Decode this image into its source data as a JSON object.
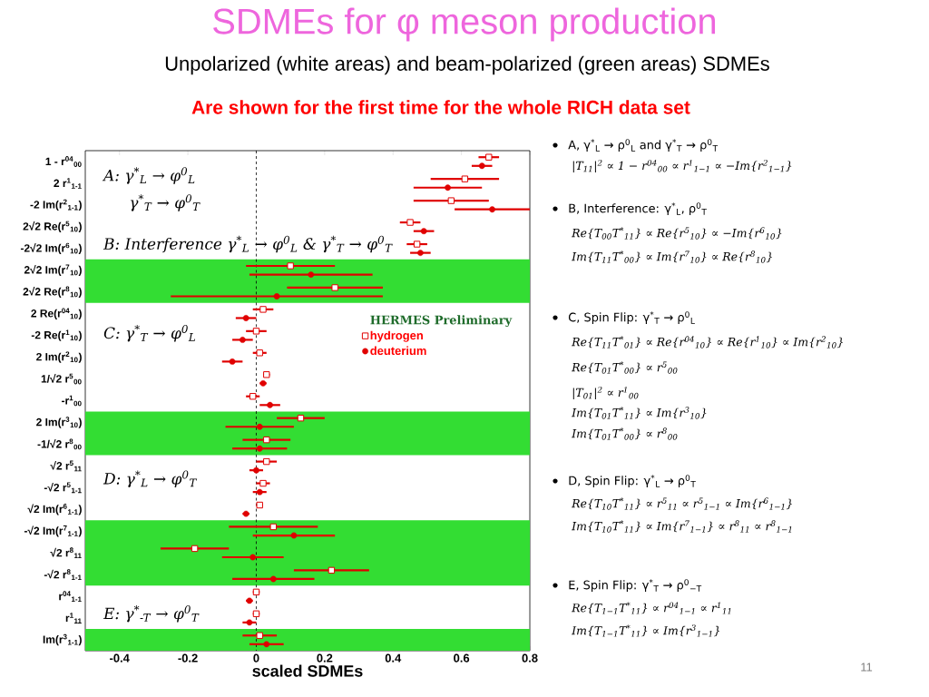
{
  "chart_data": {
    "type": "scatter",
    "orientation": "horizontal",
    "title": "SDMEs for φ meson production",
    "subtitle": "Unpolarized (white areas) and beam-polarized (green areas) SDMEs",
    "xlabel": "scaled SDMEs",
    "legend_title": "HERMES Preliminary",
    "categories": [
      "1 - r$^{04}$$_{00}$",
      "2 r$^{1}$$_{1-1}$",
      "-2 Im(r$^{2}$$_{1-1}$)",
      "2√2 Re(r$^{5}$$_{10}$)",
      "-2√2 Im(r$^{6}$$_{10}$)",
      "2√2 Im(r$^{7}$$_{10}$)",
      "2√2 Re(r$^{8}$$_{10}$)",
      "2 Re(r$^{04}$$_{10}$)",
      "-2 Re(r$^{1}$$_{10}$)",
      "2 Im(r$^{2}$$_{10}$)",
      "1/√2 r$^{5}$$_{00}$",
      "-r$^{1}$$_{00}$",
      "2 Im(r$^{3}$$_{10}$)",
      "-1/√2 r$^{8}$$_{00}$",
      "√2 r$^{5}$$_{11}$",
      "-√2 r$^{5}$$_{1-1}$",
      "√2 Im(r$^{6}$$_{1-1}$)",
      "-√2 Im(r$^{7}$$_{1-1}$)",
      "√2 r$^{8}$$_{11}$",
      "-√2 r$^{8}$$_{1-1}$",
      "r$^{04}$$_{1-1}$",
      "r$^{1}$$_{11}$",
      "Im(r$^{3}$$_{1-1}$)"
    ],
    "series": [
      {
        "name": "hydrogen",
        "color": "#e00000",
        "marker": "square",
        "values": [
          0.68,
          0.61,
          0.57,
          0.45,
          0.47,
          0.1,
          0.23,
          0.02,
          0.0,
          0.01,
          0.03,
          -0.01,
          0.13,
          0.03,
          0.03,
          0.02,
          0.01,
          0.05,
          -0.18,
          0.22,
          0.0,
          0.0,
          0.01
        ],
        "errors": [
          0.03,
          0.1,
          0.11,
          0.03,
          0.03,
          0.13,
          0.14,
          0.03,
          0.03,
          0.02,
          0.01,
          0.02,
          0.07,
          0.07,
          0.03,
          0.02,
          0.01,
          0.13,
          0.1,
          0.11,
          0.01,
          0.01,
          0.05
        ]
      },
      {
        "name": "deuterium",
        "color": "#e00000",
        "marker": "circle",
        "values": [
          0.66,
          0.56,
          0.69,
          0.49,
          0.48,
          0.16,
          0.06,
          -0.03,
          -0.04,
          -0.07,
          0.02,
          0.04,
          0.01,
          0.01,
          0.0,
          0.01,
          -0.03,
          0.11,
          -0.01,
          0.05,
          -0.02,
          -0.02,
          0.03
        ],
        "errors": [
          0.03,
          0.1,
          0.11,
          0.03,
          0.03,
          0.18,
          0.31,
          0.03,
          0.03,
          0.03,
          0.01,
          0.03,
          0.1,
          0.08,
          0.02,
          0.02,
          0.01,
          0.12,
          0.09,
          0.12,
          0.01,
          0.02,
          0.05
        ]
      }
    ],
    "xlim": [
      -0.5,
      0.8
    ],
    "xticks": [
      -0.4,
      -0.2,
      0,
      0.2,
      0.4,
      0.6,
      0.8
    ],
    "ref_lines": [
      {
        "axis": "x",
        "value": 0,
        "color": "#000000",
        "line_style": "dashed"
      }
    ],
    "bands": [
      {
        "axis": "y",
        "from": "2√2 Im(r$^{7}$$_{10}$)",
        "to": "2√2 Re(r$^{8}$$_{10}$)",
        "color": "#33dd33"
      },
      {
        "axis": "y",
        "from": "2 Im(r$^{3}$$_{10}$)",
        "to": "-1/√2 r$^{8}$$_{00}$",
        "color": "#33dd33"
      },
      {
        "axis": "y",
        "from": "-√2 Im(r$^{7}$$_{1-1}$)",
        "to": "-√2 r$^{8}$$_{1-1}$",
        "color": "#33dd33"
      },
      {
        "axis": "y",
        "from": "Im(r$^{3}$$_{1-1}$)",
        "to": "Im(r$^{3}$$_{1-1}$)",
        "color": "#33dd33"
      }
    ],
    "legend": "right",
    "annotations": [
      "A: γ$^{*}$$_{L}$ → φ$^{0}$$_{L}$",
      "γ$^{*}$$_{T}$ → φ$^{0}$$_{T}$",
      "B: Interference γ$^{*}$$_{L}$ → φ$^{0}$$_{L}$ & γ$^{*}$$_{T}$ → φ$^{0}$$_{T}$",
      "C: γ$^{*}$$_{T}$ → φ$^{0}$$_{L}$",
      "D: γ$^{*}$$_{L}$ → φ$^{0}$$_{T}$",
      "E: γ$^{*}$$_{-T}$ → φ$^{0}$$_{T}$",
      "Are shown for the first time for the whole RICH data set",
      "A, γ$^{*}$$_{L}$ → ρ$^{0}$$_{L}$ and γ$^{*}$$_{T}$ → ρ$^{0}$$_{T}$",
      "|T$_{11}$|$^{2}$ ∝ 1 − r$^{04}$$_{00}$ ∝ r$^{1}$$_{1−1}$ ∝ −Im{r$^{2}$$_{1−1}$}",
      "B, Interference: γ$^{*}$$_{L}$, ρ$^{0}$$_{T}$",
      "Re{T$_{00}$T$^{*}$$_{11}$} ∝ Re{r$^{5}$$_{10}$} ∝ −Im{r$^{6}$$_{10}$}",
      "Im{T$_{11}$T$^{*}$$_{00}$} ∝ Im{r$^{7}$$_{10}$} ∝ Re{r$^{8}$$_{10}$}",
      "C, Spin Flip: γ$^{*}$$_{T}$ → ρ$^{0}$$_{L}$",
      "Re{T$_{11}$T$^{*}$$_{01}$} ∝ Re{r$^{04}$$_{10}$} ∝ Re{r$^{1}$$_{10}$} ∝ Im{r$^{2}$$_{10}$}",
      "Re{T$_{01}$T$^{*}$$_{00}$} ∝ r$^{5}$$_{00}$",
      "|T$_{01}$|$^{2}$ ∝ r$^{1}$$_{00}$",
      "Im{T$_{01}$T$^{*}$$_{11}$} ∝ Im{r$^{3}$$_{10}$}",
      "Im{T$_{01}$T$^{*}$$_{00}$} ∝ r$^{8}$$_{00}$",
      "D, Spin Flip: γ$^{*}$$_{L}$ → ρ$^{0}$$_{T}$",
      "Re{T$_{10}$T$^{*}$$_{11}$} ∝ r$^{5}$$_{11}$ ∝ r$^{5}$$_{1−1}$ ∝ Im{r$^{6}$$_{1−1}$}",
      "Im{T$_{10}$T$^{*}$$_{11}$} ∝ Im{r$^{7}$$_{1−1}$} ∝ r$^{8}$$_{11}$ ∝ r$^{8}$$_{1−1}$",
      "E, Spin Flip: γ$^{*}$$_{T}$ → ρ$^{0}$$_{−T}$",
      "Re{T$_{1−1}$T$^{*}$$_{11}$} ∝ r$^{04}$$_{1−1}$ ∝ r$^{1}$$_{11}$",
      "Im{T$_{1−1}$T$^{*}$$_{11}$} ∝ Im{r$^{3}$$_{1−1}$}",
      "11"
    ]
  }
}
